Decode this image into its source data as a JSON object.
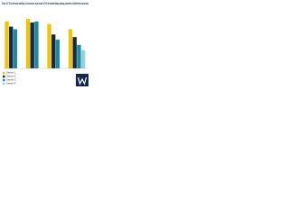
{
  "chart_data": {
    "type": "bar",
    "title": "Chart 1.6 The intended stability of currencies as a result of 1% threshold today among countries of different currencies",
    "categories": [
      null,
      null,
      null,
      null
    ],
    "series": [
      {
        "name": "Series 1",
        "color": "#f2c400",
        "values": [
          90,
          95,
          85,
          75
        ]
      },
      {
        "name": "Series 2",
        "color": "#13294b",
        "values": [
          80,
          88,
          65,
          60
        ]
      },
      {
        "name": "Series 3",
        "color": "#1e8a98",
        "values": [
          75,
          90,
          55,
          45
        ]
      },
      {
        "name": "Series 4",
        "color": "#8fd3de",
        "values": [
          null,
          null,
          null,
          35
        ]
      }
    ],
    "ylim": [
      0,
      100
    ]
  }
}
